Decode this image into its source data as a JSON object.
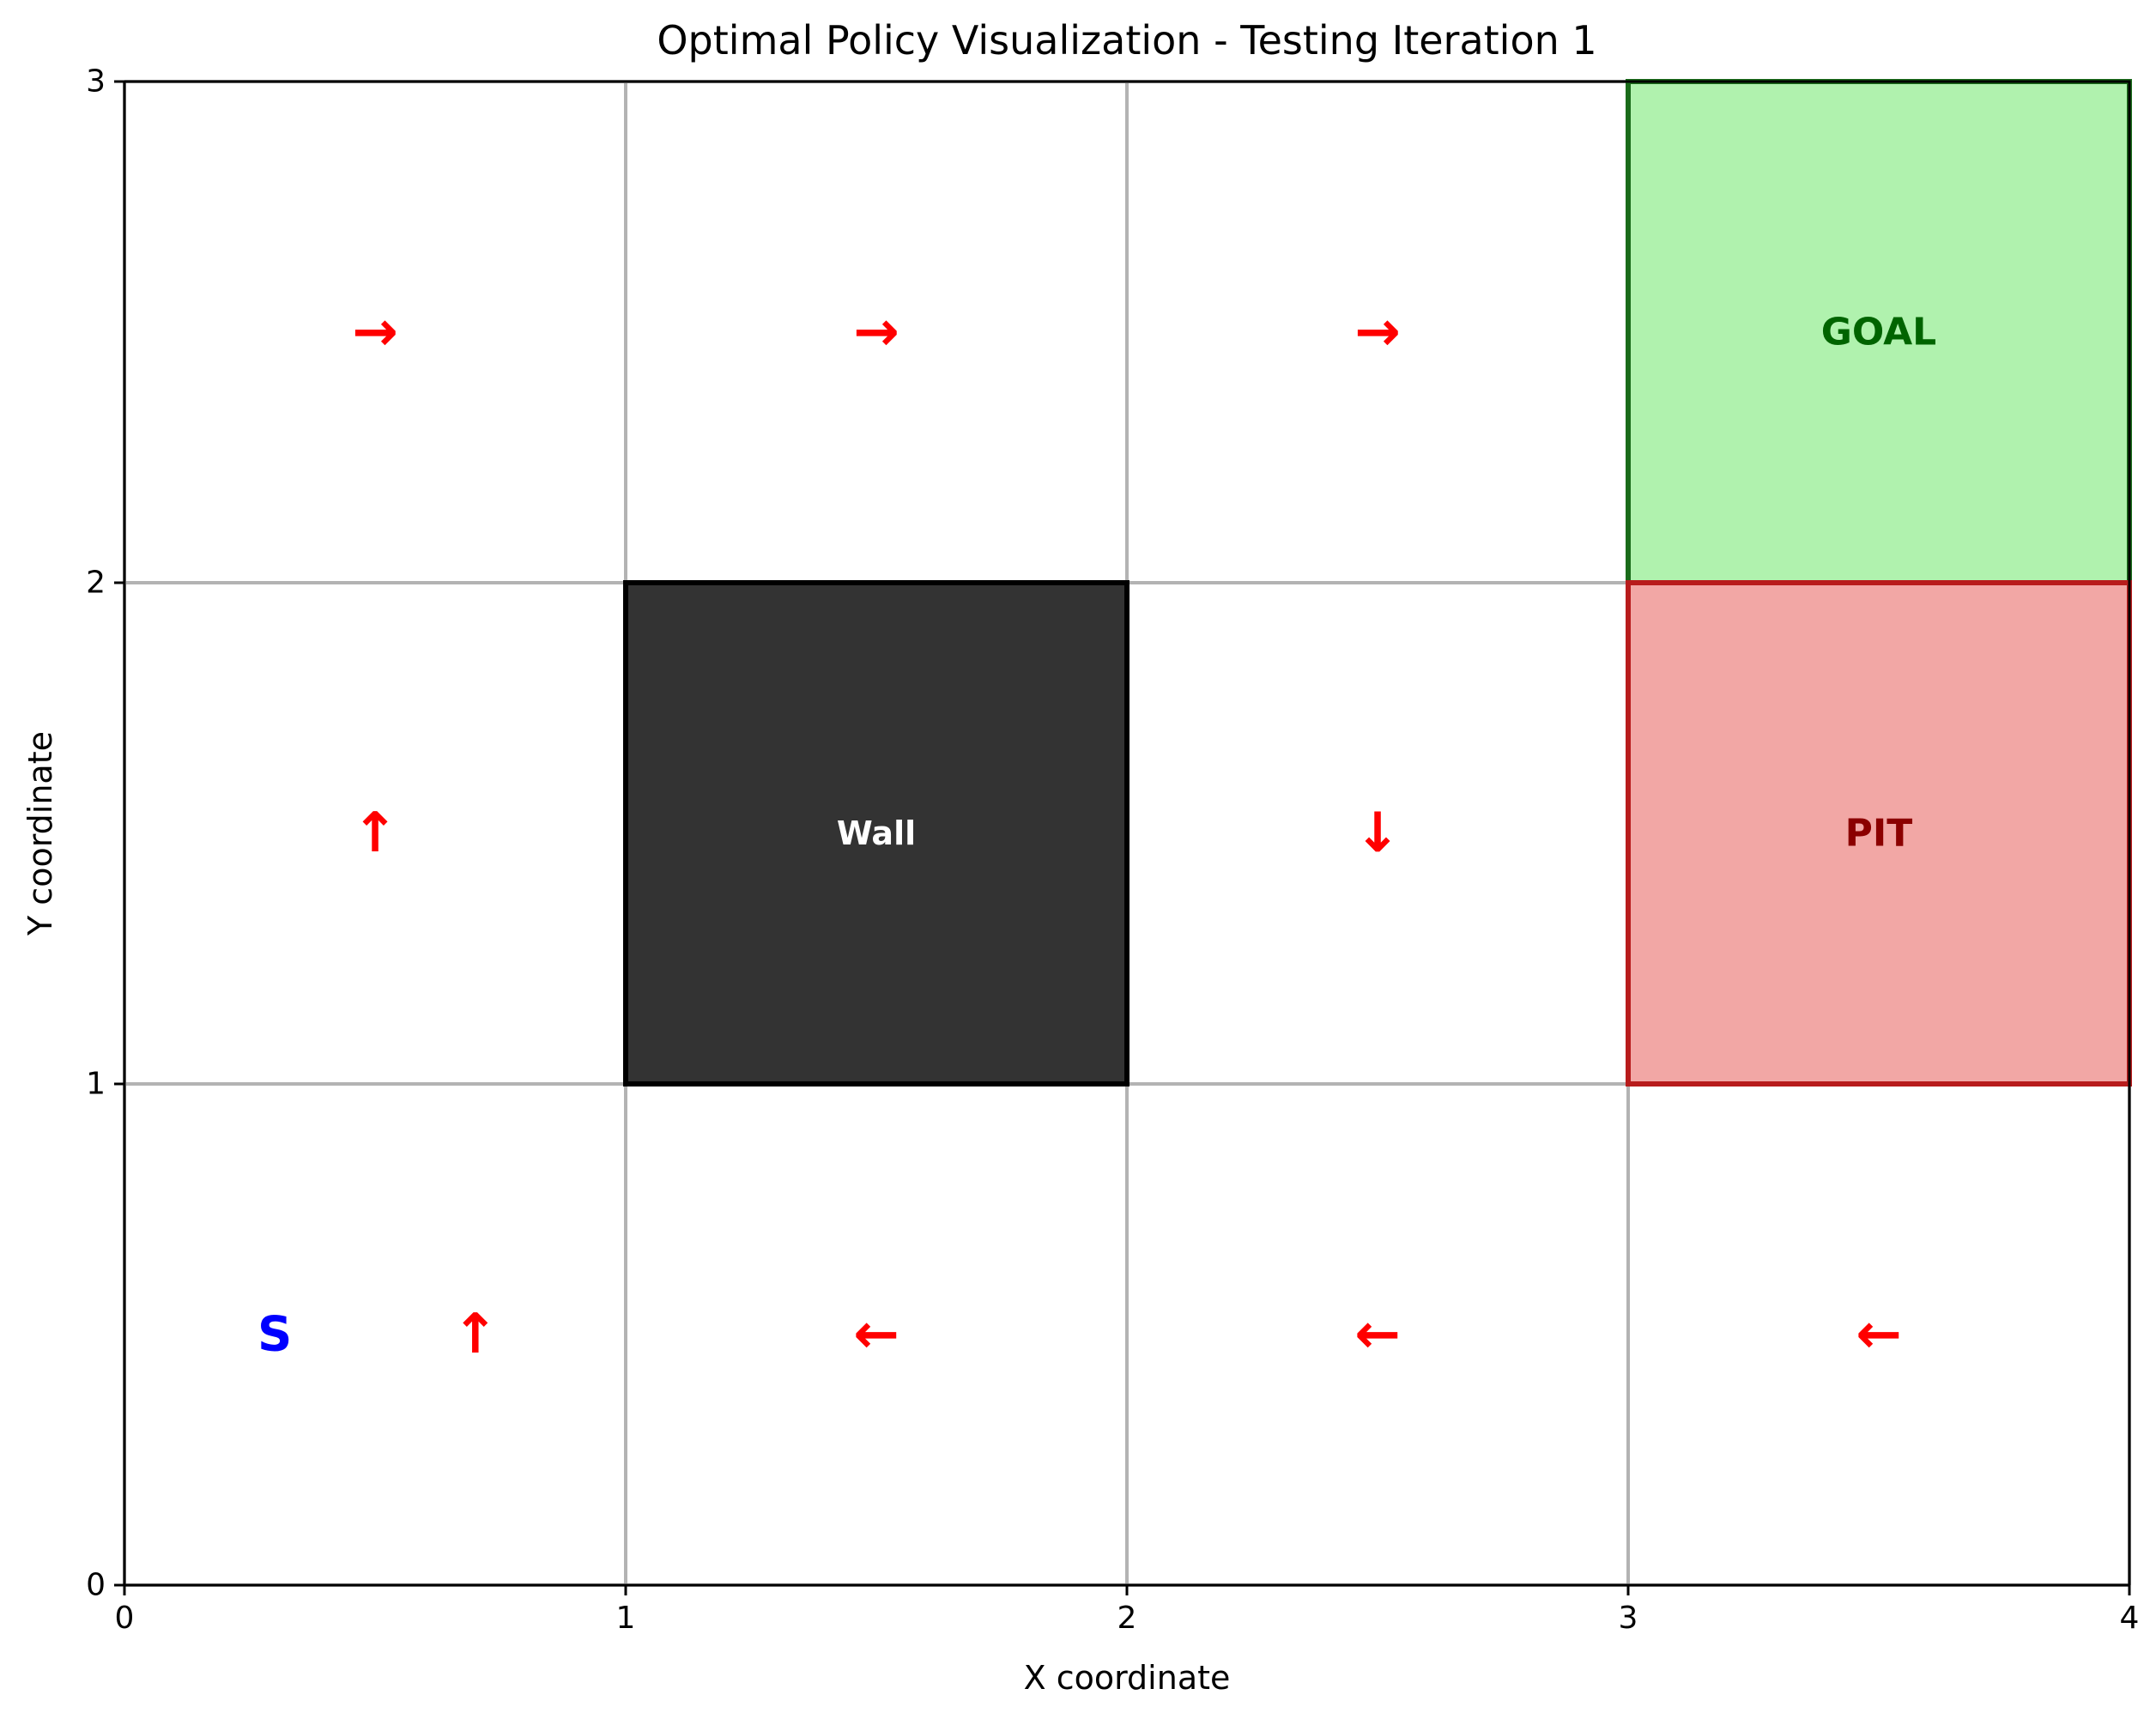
{
  "chart_data": {
    "type": "heatmap",
    "title": "Optimal Policy Visualization - Testing Iteration 1",
    "xlabel": "X coordinate",
    "ylabel": "Y coordinate",
    "xlim": [
      0,
      4
    ],
    "ylim": [
      0,
      3
    ],
    "xticks": [
      "0",
      "1",
      "2",
      "3",
      "4"
    ],
    "yticks": [
      "0",
      "1",
      "2",
      "3"
    ],
    "grid": true,
    "special_cells": [
      {
        "name": "wall",
        "label": "Wall",
        "x": 1,
        "y": 1,
        "fill": "#333333",
        "edge": "#000000",
        "text_color": "#ffffff"
      },
      {
        "name": "goal",
        "label": "GOAL",
        "x": 3,
        "y": 2,
        "fill": "#b0f2ae",
        "edge": "#1a6b1a",
        "text_color": "#006400"
      },
      {
        "name": "pit",
        "label": "PIT",
        "x": 3,
        "y": 1,
        "fill": "#f2a7a5",
        "edge": "#b81c1c",
        "text_color": "#8b0000"
      }
    ],
    "start": {
      "label": "S",
      "x": 0.3,
      "y": 0.5,
      "color": "#0000ff"
    },
    "policy_arrows": [
      {
        "x": 0.5,
        "y": 2.5,
        "symbol": "→"
      },
      {
        "x": 1.5,
        "y": 2.5,
        "symbol": "→"
      },
      {
        "x": 2.5,
        "y": 2.5,
        "symbol": "→"
      },
      {
        "x": 0.5,
        "y": 1.5,
        "symbol": "↑"
      },
      {
        "x": 2.5,
        "y": 1.5,
        "symbol": "↓"
      },
      {
        "x": 0.7,
        "y": 0.5,
        "symbol": "↑"
      },
      {
        "x": 1.5,
        "y": 0.5,
        "symbol": "←"
      },
      {
        "x": 2.5,
        "y": 0.5,
        "symbol": "←"
      },
      {
        "x": 3.5,
        "y": 0.5,
        "symbol": "←"
      }
    ],
    "arrow_color": "#ff0000",
    "grid_color": "#b3b3b3"
  }
}
